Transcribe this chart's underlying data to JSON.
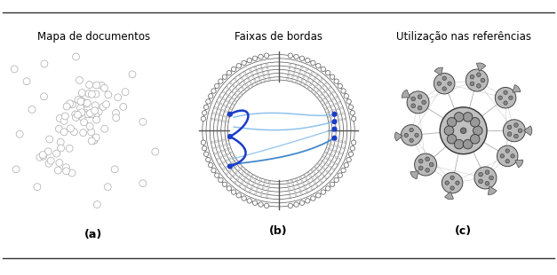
{
  "title_a": "Mapa de documentos",
  "title_b": "Faixas de bordas",
  "title_c": "Utilização nas referências",
  "label_a": "(a)",
  "label_b": "(b)",
  "label_c": "(c)",
  "node_color": "#aaaaaa",
  "ring_color": "#555555",
  "ring_color2": "#888888",
  "blue_dark": "#1a3cc8",
  "blue_light": "#7ab8e8",
  "blue_mid": "#4488cc",
  "title_fontsize": 8.5,
  "label_fontsize": 9
}
